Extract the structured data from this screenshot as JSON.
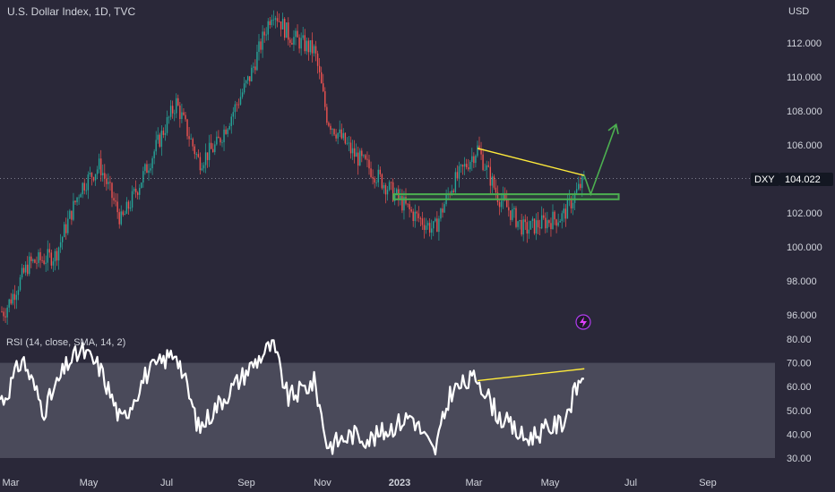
{
  "header": {
    "title": "U.S. Dollar Index, 1D, TVC",
    "currency": "USD"
  },
  "badge": {
    "symbol": "DXY",
    "price": "104.022",
    "color": "#131722"
  },
  "colors": {
    "background": "#2a2839",
    "up": "#26a69a",
    "down": "#ef5350",
    "yellow": "#ffeb3b",
    "green": "#4caf50",
    "rsi_band": "#4a4a5a",
    "rsi_line": "#ffffff",
    "axis_text": "#d1d4dc"
  },
  "rsi": {
    "label": "RSI (14, close, SMA, 14, 2)"
  },
  "bolt_icon": "bolt-icon",
  "chart_data": [
    {
      "type": "candlestick",
      "title": "U.S. Dollar Index, 1D, TVC",
      "y_ticks": [
        96,
        98,
        100,
        102,
        104,
        106,
        108,
        110,
        112
      ],
      "y_tick_labels": [
        "96.000",
        "98.000",
        "100.000",
        "102.000",
        "104.000",
        "106.000",
        "108.000",
        "110.000",
        "112.000"
      ],
      "ylim": [
        95,
        113.9
      ],
      "x_ticks": [
        "Mar",
        "May",
        "Jul",
        "Sep",
        "Nov",
        "2023",
        "Mar",
        "May",
        "Jul",
        "Sep"
      ],
      "last_price": 104.022,
      "trend_path": [
        {
          "date": "2022-03-01",
          "value": 96.2
        },
        {
          "date": "2022-03-20",
          "value": 99.0
        },
        {
          "date": "2022-04-10",
          "value": 99.5
        },
        {
          "date": "2022-04-30",
          "value": 103.5
        },
        {
          "date": "2022-05-15",
          "value": 104.8
        },
        {
          "date": "2022-06-01",
          "value": 101.5
        },
        {
          "date": "2022-06-20",
          "value": 104.5
        },
        {
          "date": "2022-07-14",
          "value": 108.5
        },
        {
          "date": "2022-08-01",
          "value": 105.0
        },
        {
          "date": "2022-08-15",
          "value": 106.0
        },
        {
          "date": "2022-09-10",
          "value": 110.0
        },
        {
          "date": "2022-09-28",
          "value": 114.0
        },
        {
          "date": "2022-10-10",
          "value": 112.5
        },
        {
          "date": "2022-10-31",
          "value": 111.5
        },
        {
          "date": "2022-11-10",
          "value": 107.5
        },
        {
          "date": "2022-11-30",
          "value": 105.5
        },
        {
          "date": "2022-12-15",
          "value": 104.5
        },
        {
          "date": "2023-01-15",
          "value": 102.0
        },
        {
          "date": "2023-02-02",
          "value": 101.0
        },
        {
          "date": "2023-02-15",
          "value": 103.5
        },
        {
          "date": "2023-03-08",
          "value": 105.8
        },
        {
          "date": "2023-03-24",
          "value": 103.0
        },
        {
          "date": "2023-04-14",
          "value": 101.0
        },
        {
          "date": "2023-05-01",
          "value": 101.5
        },
        {
          "date": "2023-05-14",
          "value": 101.8
        },
        {
          "date": "2023-05-31",
          "value": 104.0
        }
      ],
      "annotations": [
        {
          "kind": "line",
          "color": "yellow",
          "from": {
            "date": "2023-03-08",
            "value": 105.8
          },
          "to": {
            "date": "2023-05-31",
            "value": 104.2
          }
        },
        {
          "kind": "rectangle",
          "color": "green",
          "from": {
            "date": "2023-01-01",
            "value": 103.1
          },
          "to": {
            "date": "2023-06-27",
            "value": 102.8
          }
        },
        {
          "kind": "arrow",
          "color": "green",
          "points": [
            {
              "date": "2023-05-31",
              "value": 104.2
            },
            {
              "date": "2023-06-05",
              "value": 103.1
            },
            {
              "date": "2023-06-25",
              "value": 107.2
            }
          ]
        }
      ]
    },
    {
      "type": "line",
      "title": "RSI (14, close, SMA, 14, 2)",
      "y_ticks": [
        30,
        40,
        50,
        60,
        70,
        80
      ],
      "y_tick_labels": [
        "30.00",
        "40.00",
        "50.00",
        "60.00",
        "70.00",
        "80.00"
      ],
      "ylim": [
        30,
        80
      ],
      "band": [
        30,
        70
      ],
      "trend_path": [
        {
          "date": "2022-03-01",
          "value": 55
        },
        {
          "date": "2022-03-15",
          "value": 72
        },
        {
          "date": "2022-04-01",
          "value": 50
        },
        {
          "date": "2022-04-20",
          "value": 70
        },
        {
          "date": "2022-05-01",
          "value": 75
        },
        {
          "date": "2022-05-15",
          "value": 68
        },
        {
          "date": "2022-06-01",
          "value": 45
        },
        {
          "date": "2022-06-20",
          "value": 65
        },
        {
          "date": "2022-07-14",
          "value": 75
        },
        {
          "date": "2022-08-01",
          "value": 42
        },
        {
          "date": "2022-08-15",
          "value": 52
        },
        {
          "date": "2022-09-10",
          "value": 68
        },
        {
          "date": "2022-09-28",
          "value": 78
        },
        {
          "date": "2022-10-10",
          "value": 55
        },
        {
          "date": "2022-10-31",
          "value": 62
        },
        {
          "date": "2022-11-10",
          "value": 35
        },
        {
          "date": "2022-11-30",
          "value": 40
        },
        {
          "date": "2022-12-15",
          "value": 38
        },
        {
          "date": "2023-01-15",
          "value": 48
        },
        {
          "date": "2023-02-02",
          "value": 32
        },
        {
          "date": "2023-02-15",
          "value": 58
        },
        {
          "date": "2023-03-08",
          "value": 64
        },
        {
          "date": "2023-03-24",
          "value": 48
        },
        {
          "date": "2023-04-14",
          "value": 38
        },
        {
          "date": "2023-05-01",
          "value": 42
        },
        {
          "date": "2023-05-14",
          "value": 45
        },
        {
          "date": "2023-05-31",
          "value": 67
        }
      ],
      "annotations": [
        {
          "kind": "line",
          "color": "yellow",
          "from": {
            "date": "2023-03-08",
            "value": 62.5
          },
          "to": {
            "date": "2023-05-31",
            "value": 67.5
          }
        }
      ]
    }
  ]
}
